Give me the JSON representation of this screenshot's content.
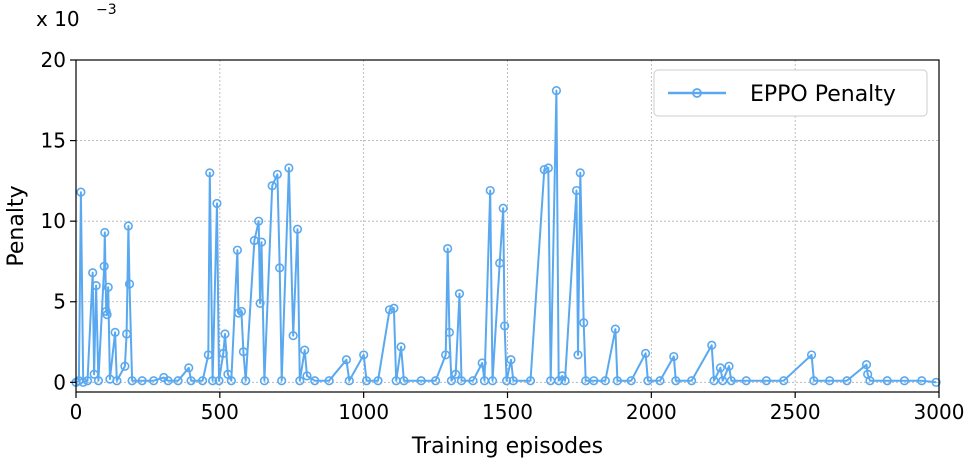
{
  "chart_data": {
    "type": "line",
    "xlabel": "Training episodes",
    "ylabel": "Penalty",
    "y_scale_label": "x 10",
    "y_scale_exponent": "−3",
    "xlim": [
      0,
      3000
    ],
    "ylim": [
      -0.6,
      20
    ],
    "x_ticks": [
      "0",
      "500",
      "1000",
      "1500",
      "2000",
      "2500",
      "3000"
    ],
    "y_ticks": [
      "0",
      "5",
      "10",
      "15",
      "20"
    ],
    "grid": true,
    "legend_position": "top-right",
    "series": [
      {
        "name": "EPPO Penalty",
        "color": "#5aa9f0",
        "points": [
          [
            0,
            0.0
          ],
          [
            10,
            0.1
          ],
          [
            17,
            11.8
          ],
          [
            25,
            0.0
          ],
          [
            40,
            0.1
          ],
          [
            58,
            6.8
          ],
          [
            63,
            0.5
          ],
          [
            70,
            6.0
          ],
          [
            78,
            0.1
          ],
          [
            98,
            7.2
          ],
          [
            100,
            9.3
          ],
          [
            105,
            4.4
          ],
          [
            108,
            4.2
          ],
          [
            112,
            5.9
          ],
          [
            118,
            0.2
          ],
          [
            136,
            3.1
          ],
          [
            142,
            0.1
          ],
          [
            170,
            1.0
          ],
          [
            176,
            3.0
          ],
          [
            182,
            9.7
          ],
          [
            186,
            6.1
          ],
          [
            195,
            0.1
          ],
          [
            230,
            0.1
          ],
          [
            270,
            0.1
          ],
          [
            305,
            0.3
          ],
          [
            320,
            0.1
          ],
          [
            355,
            0.1
          ],
          [
            392,
            0.9
          ],
          [
            400,
            0.1
          ],
          [
            440,
            0.1
          ],
          [
            460,
            1.7
          ],
          [
            465,
            13.0
          ],
          [
            475,
            0.1
          ],
          [
            490,
            11.1
          ],
          [
            497,
            0.1
          ],
          [
            512,
            1.8
          ],
          [
            518,
            3.0
          ],
          [
            528,
            0.5
          ],
          [
            540,
            0.1
          ],
          [
            561,
            8.2
          ],
          [
            565,
            4.3
          ],
          [
            575,
            4.4
          ],
          [
            582,
            1.9
          ],
          [
            590,
            0.1
          ],
          [
            620,
            8.8
          ],
          [
            635,
            10.0
          ],
          [
            640,
            4.9
          ],
          [
            645,
            8.7
          ],
          [
            655,
            0.1
          ],
          [
            682,
            12.2
          ],
          [
            700,
            12.9
          ],
          [
            708,
            7.1
          ],
          [
            715,
            0.1
          ],
          [
            740,
            13.3
          ],
          [
            755,
            2.9
          ],
          [
            770,
            9.5
          ],
          [
            778,
            0.1
          ],
          [
            795,
            2.0
          ],
          [
            803,
            0.4
          ],
          [
            830,
            0.1
          ],
          [
            880,
            0.1
          ],
          [
            940,
            1.4
          ],
          [
            950,
            0.1
          ],
          [
            1000,
            1.7
          ],
          [
            1010,
            0.1
          ],
          [
            1050,
            0.1
          ],
          [
            1090,
            4.5
          ],
          [
            1105,
            4.6
          ],
          [
            1113,
            0.1
          ],
          [
            1130,
            2.2
          ],
          [
            1140,
            0.1
          ],
          [
            1200,
            0.1
          ],
          [
            1250,
            0.1
          ],
          [
            1285,
            1.7
          ],
          [
            1292,
            8.3
          ],
          [
            1298,
            3.1
          ],
          [
            1305,
            0.1
          ],
          [
            1320,
            0.5
          ],
          [
            1333,
            5.5
          ],
          [
            1340,
            0.1
          ],
          [
            1380,
            0.1
          ],
          [
            1412,
            1.2
          ],
          [
            1420,
            0.1
          ],
          [
            1440,
            11.9
          ],
          [
            1448,
            0.1
          ],
          [
            1473,
            7.4
          ],
          [
            1485,
            10.8
          ],
          [
            1490,
            3.5
          ],
          [
            1497,
            0.1
          ],
          [
            1512,
            1.4
          ],
          [
            1520,
            0.1
          ],
          [
            1580,
            0.1
          ],
          [
            1628,
            13.2
          ],
          [
            1642,
            13.3
          ],
          [
            1650,
            0.1
          ],
          [
            1670,
            18.1
          ],
          [
            1678,
            0.1
          ],
          [
            1690,
            0.4
          ],
          [
            1700,
            0.1
          ],
          [
            1740,
            11.9
          ],
          [
            1745,
            1.7
          ],
          [
            1753,
            13.0
          ],
          [
            1765,
            3.7
          ],
          [
            1772,
            0.1
          ],
          [
            1800,
            0.1
          ],
          [
            1840,
            0.1
          ],
          [
            1875,
            3.3
          ],
          [
            1882,
            0.1
          ],
          [
            1930,
            0.1
          ],
          [
            1980,
            1.8
          ],
          [
            1988,
            0.1
          ],
          [
            2030,
            0.1
          ],
          [
            2078,
            1.6
          ],
          [
            2085,
            0.1
          ],
          [
            2140,
            0.1
          ],
          [
            2210,
            2.3
          ],
          [
            2218,
            0.1
          ],
          [
            2240,
            0.9
          ],
          [
            2248,
            0.1
          ],
          [
            2270,
            1.0
          ],
          [
            2278,
            0.1
          ],
          [
            2330,
            0.1
          ],
          [
            2400,
            0.1
          ],
          [
            2460,
            0.1
          ],
          [
            2557,
            1.7
          ],
          [
            2565,
            0.1
          ],
          [
            2620,
            0.1
          ],
          [
            2680,
            0.1
          ],
          [
            2748,
            1.1
          ],
          [
            2752,
            0.5
          ],
          [
            2760,
            0.1
          ],
          [
            2820,
            0.1
          ],
          [
            2880,
            0.1
          ],
          [
            2940,
            0.1
          ],
          [
            2990,
            0.0
          ]
        ]
      }
    ]
  }
}
